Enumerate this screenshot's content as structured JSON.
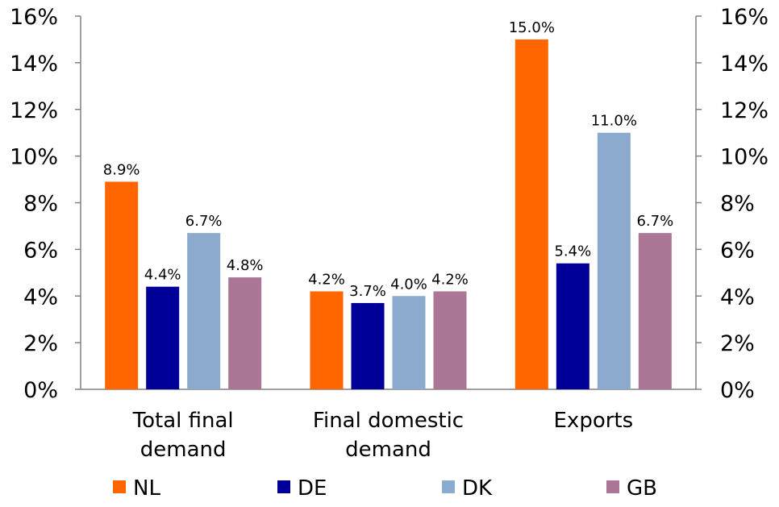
{
  "chart_data": {
    "type": "bar",
    "categories": [
      [
        "Total final",
        "demand"
      ],
      [
        "Final domestic",
        "demand"
      ],
      [
        "Exports"
      ]
    ],
    "series": [
      {
        "name": "NL",
        "color": "#FF6600",
        "values": [
          8.9,
          4.2,
          15.0
        ],
        "labels": [
          "8.9%",
          "4.2%",
          "15.0%"
        ]
      },
      {
        "name": "DE",
        "color": "#000099",
        "values": [
          4.4,
          3.7,
          5.4
        ],
        "labels": [
          "4.4%",
          "3.7%",
          "5.4%"
        ]
      },
      {
        "name": "DK",
        "color": "#8BAACD",
        "values": [
          6.7,
          4.0,
          11.0
        ],
        "labels": [
          "6.7%",
          "4.0%",
          "11.0%"
        ]
      },
      {
        "name": "GB",
        "color": "#AB7696",
        "values": [
          4.8,
          4.2,
          6.7
        ],
        "labels": [
          "4.8%",
          "4.2%",
          "6.7%"
        ]
      }
    ],
    "ylim": [
      0,
      16
    ],
    "yticks": [
      0,
      2,
      4,
      6,
      8,
      10,
      12,
      14,
      16
    ],
    "ytick_labels": [
      "0%",
      "2%",
      "4%",
      "6%",
      "8%",
      "10%",
      "12%",
      "14%",
      "16%"
    ],
    "secondary_axis": true,
    "legend_position": "bottom",
    "grid": false
  }
}
